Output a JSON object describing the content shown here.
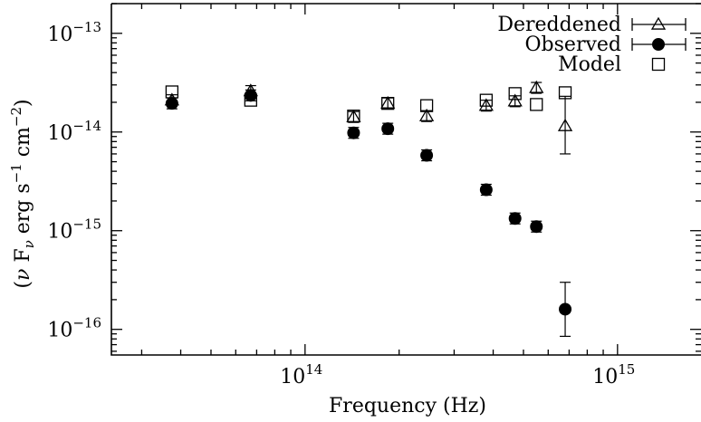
{
  "chart_data": {
    "type": "scatter",
    "xlabel": "Frequency (Hz)",
    "ylabel_parts": {
      "open": "(",
      "nu": "ν",
      "F": " F",
      "sub_nu": "ν",
      "erg": " erg s",
      "exp1": "−1",
      "cm": " cm",
      "exp2": "−2",
      "close": ")"
    },
    "x_scale": "log",
    "y_scale": "log",
    "xlim": [
      24000000000000.0,
      1850000000000000.0
    ],
    "ylim": [
      5.5e-17,
      2e-13
    ],
    "x_ticks": [
      {
        "value": 100000000000000.0,
        "base": "10",
        "exp": "14"
      },
      {
        "value": 1000000000000000.0,
        "base": "10",
        "exp": "15"
      }
    ],
    "y_ticks": [
      {
        "value": 1e-13,
        "base": "10",
        "exp": "−13"
      },
      {
        "value": 1e-14,
        "base": "10",
        "exp": "−14"
      },
      {
        "value": 1e-15,
        "base": "10",
        "exp": "−15"
      },
      {
        "value": 1e-16,
        "base": "10",
        "exp": "−16"
      }
    ],
    "legend_position": "top-right",
    "grid": false,
    "series": [
      {
        "name": "Dereddened",
        "marker": "open-triangle",
        "points": [
          {
            "x": 37500000000000.0,
            "y": 2.1e-14
          },
          {
            "x": 67000000000000.0,
            "y": 2.6e-14
          },
          {
            "x": 143000000000000.0,
            "y": 1.42e-14
          },
          {
            "x": 184000000000000.0,
            "y": 1.95e-14
          },
          {
            "x": 245000000000000.0,
            "y": 1.45e-14
          },
          {
            "x": 380000000000000.0,
            "y": 1.85e-14
          },
          {
            "x": 470000000000000.0,
            "y": 2.05e-14
          },
          {
            "x": 550000000000000.0,
            "y": 2.8e-14
          },
          {
            "x": 680000000000000.0,
            "y": 1.15e-14,
            "err_lo": 6e-15,
            "err_hi": 2.3e-14
          }
        ]
      },
      {
        "name": "Observed",
        "marker": "filled-circle",
        "points": [
          {
            "x": 37500000000000.0,
            "y": 1.95e-14
          },
          {
            "x": 67000000000000.0,
            "y": 2.35e-14
          },
          {
            "x": 143000000000000.0,
            "y": 9.8e-15
          },
          {
            "x": 184000000000000.0,
            "y": 1.08e-14
          },
          {
            "x": 245000000000000.0,
            "y": 5.8e-15
          },
          {
            "x": 380000000000000.0,
            "y": 2.6e-15
          },
          {
            "x": 470000000000000.0,
            "y": 1.33e-15
          },
          {
            "x": 550000000000000.0,
            "y": 1.1e-15
          },
          {
            "x": 680000000000000.0,
            "y": 1.6e-16,
            "err_lo": 8.5e-17,
            "err_hi": 3e-16
          }
        ]
      },
      {
        "name": "Model",
        "marker": "open-square",
        "points": [
          {
            "x": 37500000000000.0,
            "y": 2.55e-14
          },
          {
            "x": 67000000000000.0,
            "y": 2.1e-14
          },
          {
            "x": 143000000000000.0,
            "y": 1.45e-14
          },
          {
            "x": 184000000000000.0,
            "y": 1.95e-14
          },
          {
            "x": 245000000000000.0,
            "y": 1.85e-14
          },
          {
            "x": 380000000000000.0,
            "y": 2.1e-14
          },
          {
            "x": 470000000000000.0,
            "y": 2.45e-14
          },
          {
            "x": 550000000000000.0,
            "y": 1.9e-14
          },
          {
            "x": 680000000000000.0,
            "y": 2.5e-14
          }
        ]
      }
    ]
  }
}
